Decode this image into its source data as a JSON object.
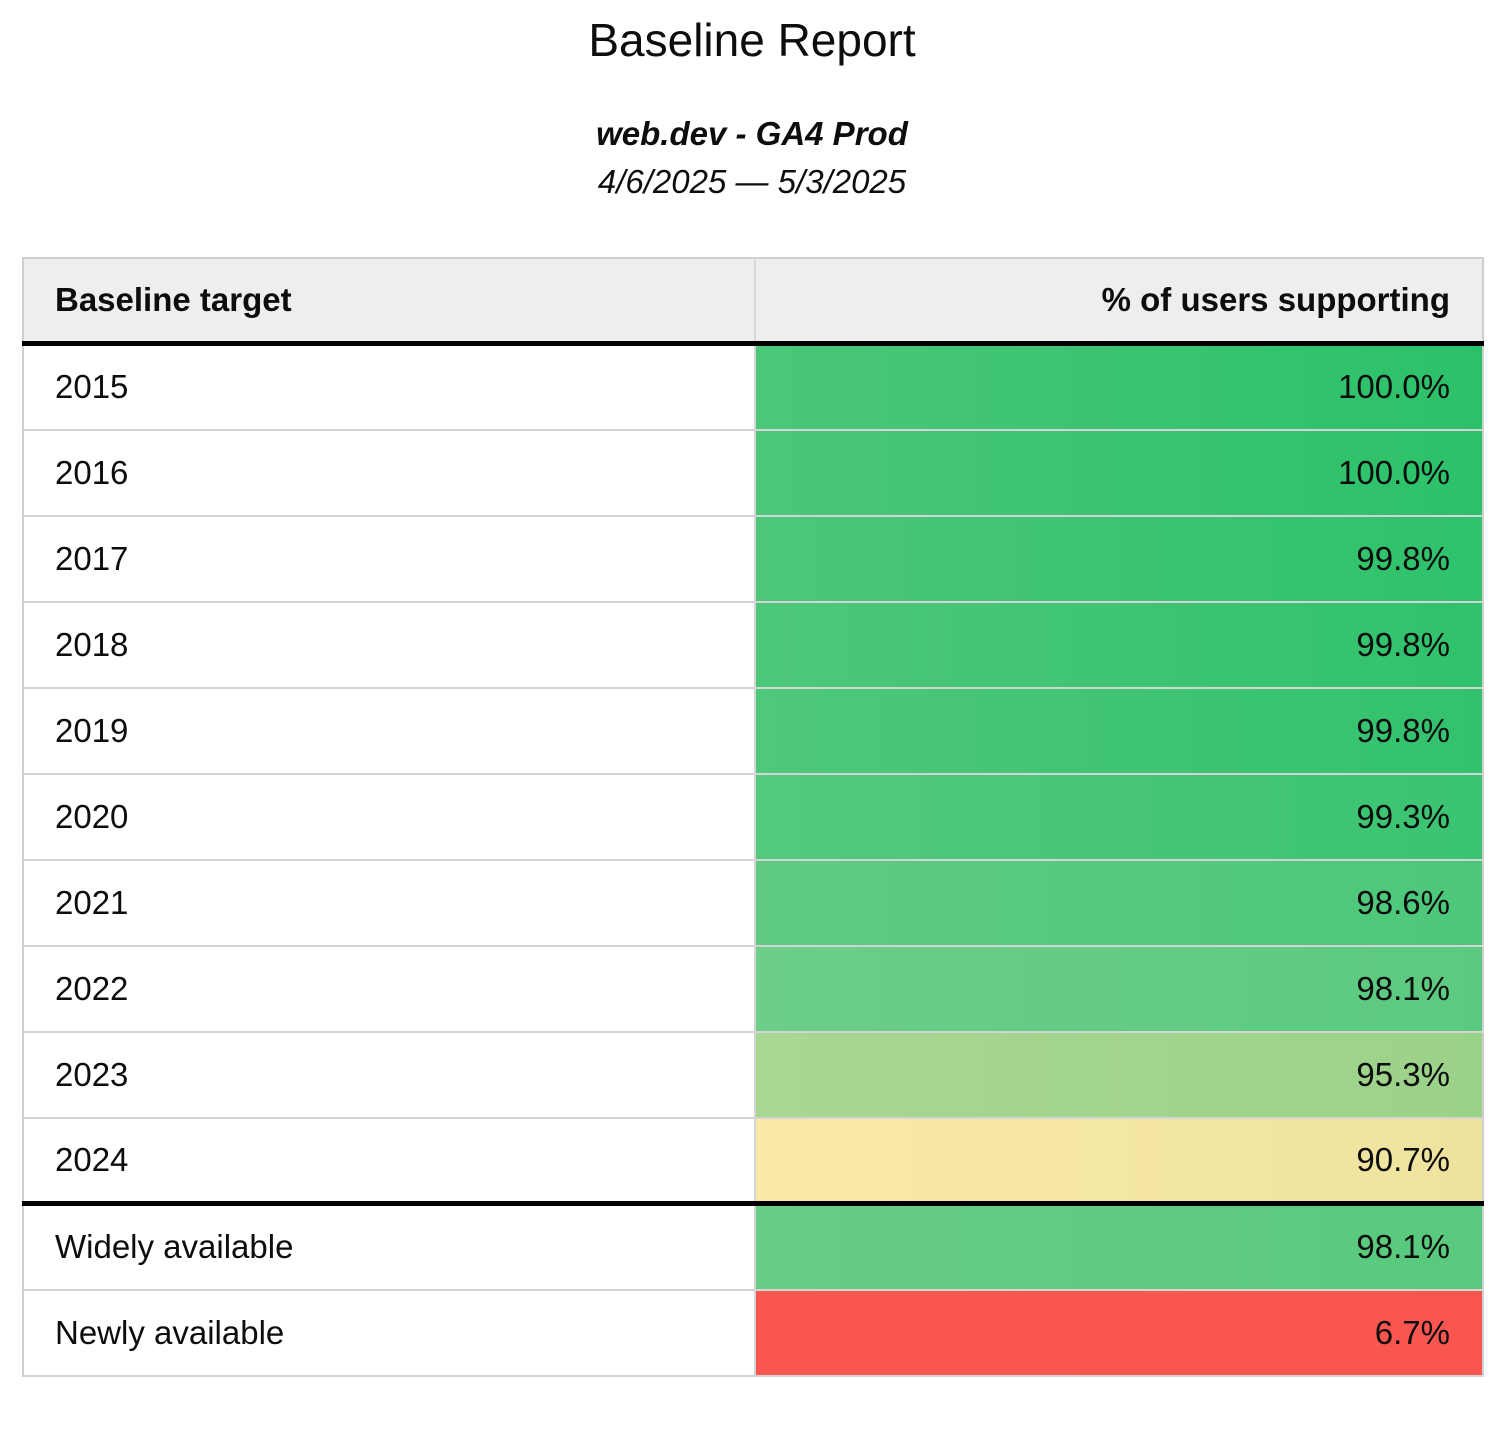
{
  "report": {
    "title": "Baseline Report",
    "subtitle": "web.dev - GA4 Prod",
    "date_range": "4/6/2025 — 5/3/2025"
  },
  "table": {
    "headers": {
      "target": "Baseline target",
      "support": "% of users supporting"
    },
    "rows": [
      {
        "target": "2015",
        "support": "100.0%",
        "color_left": "#4bc778",
        "color_right": "#2bc169"
      },
      {
        "target": "2016",
        "support": "100.0%",
        "color_left": "#4bc778",
        "color_right": "#2bc169"
      },
      {
        "target": "2017",
        "support": "99.8%",
        "color_left": "#4cc778",
        "color_right": "#2ec26b"
      },
      {
        "target": "2018",
        "support": "99.8%",
        "color_left": "#4dc879",
        "color_right": "#30c26c"
      },
      {
        "target": "2019",
        "support": "99.8%",
        "color_left": "#4ec879",
        "color_right": "#32c26d"
      },
      {
        "target": "2020",
        "support": "99.3%",
        "color_left": "#53c97c",
        "color_right": "#3ac471"
      },
      {
        "target": "2021",
        "support": "98.6%",
        "color_left": "#5fcb82",
        "color_right": "#4cc77a"
      },
      {
        "target": "2022",
        "support": "98.1%",
        "color_left": "#6cce88",
        "color_right": "#5bca80"
      },
      {
        "target": "2023",
        "support": "95.3%",
        "color_left": "#a8d793",
        "color_right": "#9bd289"
      },
      {
        "target": "2024",
        "support": "90.7%",
        "color_left": "#fae8a8",
        "color_right": "#eee39e"
      },
      {
        "target": "Widely available",
        "support": "98.1%",
        "color_left": "#68cd86",
        "color_right": "#58c97e"
      },
      {
        "target": "Newly available",
        "support": "6.7%",
        "color_left": "#fa574e",
        "color_right": "#f95650"
      }
    ]
  },
  "chart_data": {
    "type": "table",
    "title": "Baseline Report",
    "subtitle": "web.dev - GA4 Prod",
    "date_range": "4/6/2025 — 5/3/2025",
    "columns": [
      "Baseline target",
      "% of users supporting"
    ],
    "categories": [
      "2015",
      "2016",
      "2017",
      "2018",
      "2019",
      "2020",
      "2021",
      "2022",
      "2023",
      "2024",
      "Widely available",
      "Newly available"
    ],
    "values": [
      100.0,
      100.0,
      99.8,
      99.8,
      99.8,
      99.3,
      98.6,
      98.1,
      95.3,
      90.7,
      98.1,
      6.7
    ],
    "value_unit": "%",
    "layout_hints": {
      "value_column_alignment": "right",
      "heatmap": "value cells colored green (high) through yellow to red (low), subtle lighter-to-darker left-to-right gradient per cell",
      "section_separator": "thick black rule below header row and below the 2024 row"
    }
  },
  "colors": {
    "page_bg": "#ffffff",
    "text": "#0d0d0d",
    "header_bg": "#eeeeee",
    "grid_border": "#d4d4d4",
    "section_border": "#000000"
  }
}
